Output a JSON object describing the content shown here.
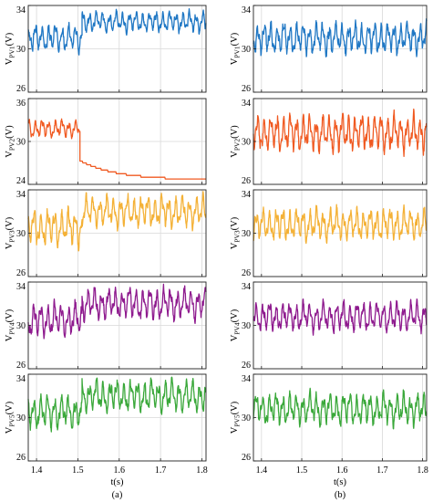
{
  "chart_data": [
    {
      "type": "line",
      "panel_label": "(a)",
      "xlabel": "t(s)",
      "x_ticks": [
        "1.4",
        "1.5",
        "1.6",
        "1.7",
        "1.8"
      ],
      "xlim": [
        1.38,
        1.81
      ],
      "grid": true,
      "subplots": [
        {
          "ylabel_main": "V",
          "ylabel_sub": "PV1",
          "ylabel_unit": "(V)",
          "color": "#1f77c4",
          "yticks": [
            26,
            30,
            34
          ],
          "ylim": [
            26,
            34
          ],
          "series": [
            {
              "segments": [
                {
                  "t0": 1.38,
                  "t1": 1.51,
                  "mean": 31.0,
                  "amp": 1.1,
                  "freq": 62
                },
                {
                  "t0": 1.51,
                  "t1": 1.81,
                  "mean": 32.5,
                  "amp": 0.85,
                  "freq": 62
                }
              ]
            }
          ]
        },
        {
          "ylabel_main": "V",
          "ylabel_sub": "PV2",
          "ylabel_unit": "(V)",
          "color": "#f05a22",
          "yticks": [
            24,
            30,
            36
          ],
          "ylim": [
            24,
            36
          ],
          "series": [
            {
              "segments": [
                {
                  "t0": 1.38,
                  "t1": 1.505,
                  "mean": 31.8,
                  "amp": 1.1,
                  "freq": 62
                }
              ],
              "decay": {
                "t0": 1.505,
                "t1": 1.81,
                "start": 27.3,
                "end": 24.6,
                "tau": 0.09
              }
            }
          ]
        },
        {
          "ylabel_main": "V",
          "ylabel_sub": "PV3",
          "ylabel_unit": "(V)",
          "color": "#f4b136",
          "yticks": [
            26,
            30,
            34
          ],
          "ylim": [
            26,
            34
          ],
          "series": [
            {
              "segments": [
                {
                  "t0": 1.38,
                  "t1": 1.51,
                  "mean": 30.5,
                  "amp": 1.5,
                  "freq": 60
                },
                {
                  "t0": 1.51,
                  "t1": 1.81,
                  "mean": 32.0,
                  "amp": 1.3,
                  "freq": 60
                }
              ]
            }
          ]
        },
        {
          "ylabel_main": "V",
          "ylabel_sub": "PV4",
          "ylabel_unit": "(V)",
          "color": "#8e1a8e",
          "yticks": [
            26,
            30,
            34
          ],
          "ylim": [
            26,
            34
          ],
          "series": [
            {
              "segments": [
                {
                  "t0": 1.38,
                  "t1": 1.51,
                  "mean": 30.5,
                  "amp": 1.4,
                  "freq": 60
                },
                {
                  "t0": 1.51,
                  "t1": 1.81,
                  "mean": 32.0,
                  "amp": 1.3,
                  "freq": 60
                }
              ]
            }
          ]
        },
        {
          "ylabel_main": "V",
          "ylabel_sub": "PV5",
          "ylabel_unit": "(V)",
          "color": "#3aa83a",
          "yticks": [
            26,
            30,
            34
          ],
          "ylim": [
            26,
            34
          ],
          "series": [
            {
              "segments": [
                {
                  "t0": 1.38,
                  "t1": 1.51,
                  "mean": 30.5,
                  "amp": 1.4,
                  "freq": 60
                },
                {
                  "t0": 1.51,
                  "t1": 1.81,
                  "mean": 32.0,
                  "amp": 1.3,
                  "freq": 60
                }
              ]
            }
          ]
        }
      ]
    },
    {
      "type": "line",
      "panel_label": "(b)",
      "xlabel": "t(s)",
      "x_ticks": [
        "1.4",
        "1.5",
        "1.6",
        "1.7",
        "1.8"
      ],
      "xlim": [
        1.38,
        1.81
      ],
      "grid": true,
      "subplots": [
        {
          "ylabel_main": "V",
          "ylabel_sub": "PV1",
          "ylabel_unit": "(V)",
          "color": "#1f77c4",
          "yticks": [
            26,
            30,
            34
          ],
          "ylim": [
            26,
            34
          ],
          "series": [
            {
              "segments": [
                {
                  "t0": 1.38,
                  "t1": 1.81,
                  "mean": 31.0,
                  "amp": 1.3,
                  "freq": 62
                }
              ]
            }
          ]
        },
        {
          "ylabel_main": "V",
          "ylabel_sub": "PV2",
          "ylabel_unit": "(V)",
          "color": "#f05a22",
          "yticks": [
            26,
            30,
            34
          ],
          "ylim": [
            26,
            34
          ],
          "series": [
            {
              "segments": [
                {
                  "t0": 1.38,
                  "t1": 1.81,
                  "mean": 30.8,
                  "amp": 1.5,
                  "freq": 62
                }
              ]
            }
          ]
        },
        {
          "ylabel_main": "V",
          "ylabel_sub": "PV3",
          "ylabel_unit": "(V)",
          "color": "#f4b136",
          "yticks": [
            26,
            30,
            34
          ],
          "ylim": [
            26,
            34
          ],
          "series": [
            {
              "segments": [
                {
                  "t0": 1.38,
                  "t1": 1.81,
                  "mean": 30.8,
                  "amp": 1.3,
                  "freq": 60
                }
              ]
            }
          ]
        },
        {
          "ylabel_main": "V",
          "ylabel_sub": "PV4",
          "ylabel_unit": "(V)",
          "color": "#8e1a8e",
          "yticks": [
            26,
            30,
            34
          ],
          "ylim": [
            26,
            34
          ],
          "series": [
            {
              "segments": [
                {
                  "t0": 1.38,
                  "t1": 1.81,
                  "mean": 30.8,
                  "amp": 1.2,
                  "freq": 60
                }
              ]
            }
          ]
        },
        {
          "ylabel_main": "V",
          "ylabel_sub": "PV5",
          "ylabel_unit": "(V)",
          "color": "#3aa83a",
          "yticks": [
            26,
            30,
            34
          ],
          "ylim": [
            26,
            34
          ],
          "series": [
            {
              "segments": [
                {
                  "t0": 1.38,
                  "t1": 1.81,
                  "mean": 30.8,
                  "amp": 1.3,
                  "freq": 60
                }
              ]
            }
          ]
        }
      ]
    }
  ]
}
